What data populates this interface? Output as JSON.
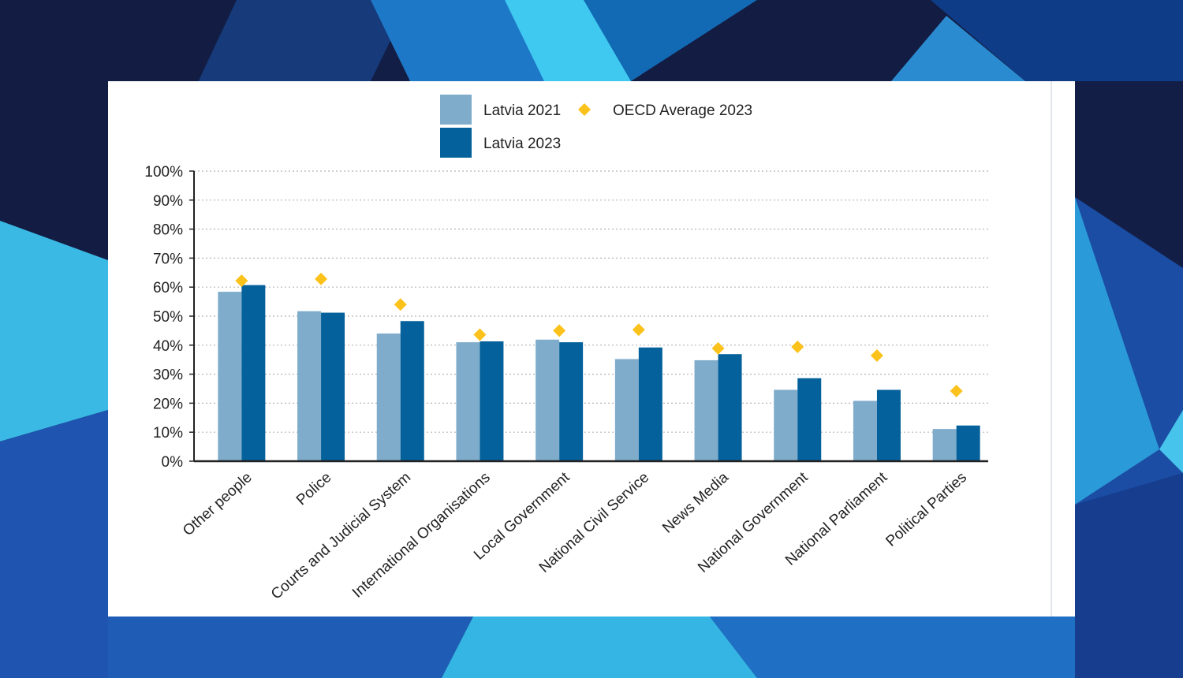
{
  "chart_data": {
    "type": "bar",
    "title": "",
    "xlabel": "",
    "ylabel": "",
    "ylim": [
      0,
      100
    ],
    "yticks": [
      "0%",
      "10%",
      "20%",
      "30%",
      "40%",
      "50%",
      "60%",
      "70%",
      "80%",
      "90%",
      "100%"
    ],
    "grid": true,
    "legend_placement": "top-center",
    "categories": [
      "Other people",
      "Police",
      "Courts and Judicial System",
      "International Organisations",
      "Local Government",
      "National Civil Service",
      "News Media",
      "National Government",
      "National Parliament",
      "Political Parties"
    ],
    "series": [
      {
        "name": "Latvia 2021",
        "kind": "bar",
        "color": "#7faccb",
        "values": [
          58.4,
          51.7,
          44.0,
          41.0,
          41.9,
          35.2,
          34.8,
          24.6,
          20.8,
          11.1
        ]
      },
      {
        "name": "Latvia 2023",
        "kind": "bar",
        "color": "#04619b",
        "values": [
          60.7,
          51.2,
          48.3,
          41.3,
          41.0,
          39.2,
          36.9,
          28.6,
          24.6,
          12.3
        ]
      },
      {
        "name": "OECD Average 2023",
        "kind": "marker",
        "color": "#fbc21b",
        "values": [
          62.2,
          62.8,
          54.0,
          43.6,
          45.0,
          45.3,
          38.9,
          39.4,
          36.4,
          24.2
        ]
      }
    ]
  }
}
